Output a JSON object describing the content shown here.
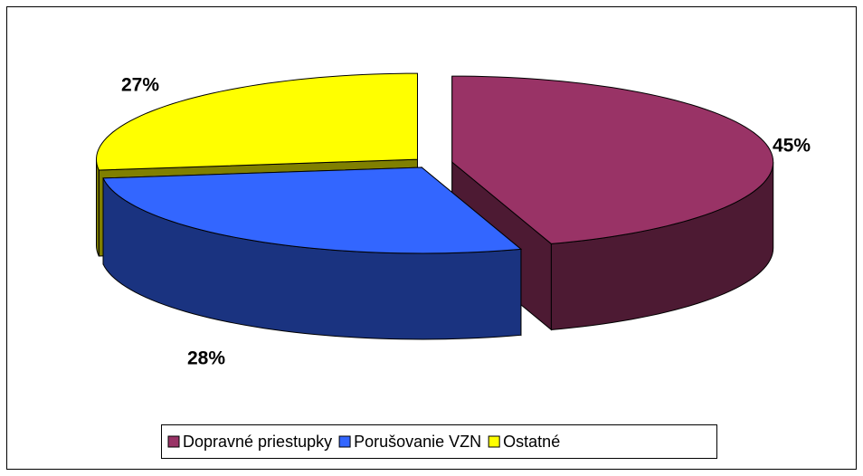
{
  "chart_data": {
    "type": "pie3d",
    "categories": [
      "Dopravné priestupky",
      "Porušovanie VZN",
      "Ostatné"
    ],
    "values": [
      45,
      28,
      27
    ],
    "value_labels": [
      "45%",
      "28%",
      "27%"
    ],
    "colors": [
      "#993366",
      "#3366FF",
      "#FFFF00"
    ],
    "legend": "bottom"
  }
}
